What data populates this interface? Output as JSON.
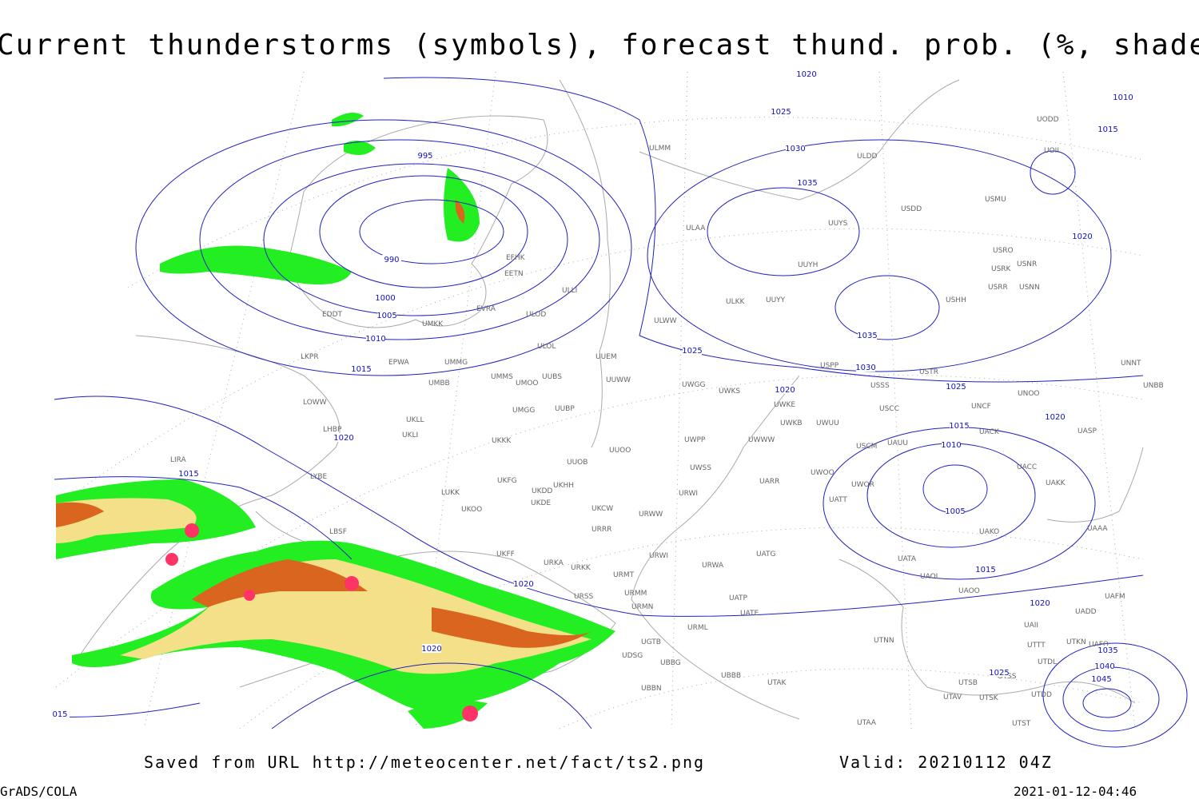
{
  "title": "Current thunderstorms (symbols), forecast thund. prob. (%, shaded)",
  "footer": {
    "saved": "Saved from URL http://meteocenter.net/fact/ts2.png",
    "valid": "Valid: 20210112 04Z",
    "software": "GrADS/COLA",
    "timestamp": "2021-01-12-04:46"
  },
  "stations": [
    "UODD",
    "UOII",
    "ULMM",
    "ULDD",
    "USMU",
    "USDD",
    "UUYS",
    "ULAA",
    "USRO",
    "USNR",
    "UUYH",
    "USRK",
    "EFHK",
    "EETN",
    "USRR",
    "USNN",
    "ULLI",
    "USHH",
    "UUYY",
    "ULKK",
    "EVRA",
    "ULOD",
    "EDDT",
    "ULWW",
    "UMKK",
    "ULOL",
    "LKPR",
    "UUEM",
    "EPWA",
    "UMMG",
    "USPP",
    "UNNT",
    "USTR",
    "UMMS",
    "UUBS",
    "UUWW",
    "UMBB",
    "UMOO",
    "UWGG",
    "USSS",
    "UNBB",
    "UWKS",
    "UNOO",
    "LOWW",
    "UWKE",
    "UNCF",
    "UUBP",
    "USCC",
    "UMGG",
    "UKLL",
    "UWKB",
    "UWUU",
    "LHBP",
    "UASP",
    "UACK",
    "UKLI",
    "UWPP",
    "UWWW",
    "UKKK",
    "UAUU",
    "USCM",
    "UUOO",
    "LIRA",
    "UUOB",
    "UACC",
    "UWSS",
    "UWOO",
    "LYBE",
    "UKFG",
    "UARR",
    "UAKK",
    "UKHH",
    "UWOR",
    "UKDD",
    "LUKK",
    "URWI",
    "UATT",
    "UKOO",
    "UKDE",
    "UKCW",
    "URWW",
    "UAAA",
    "URRR",
    "UAKO",
    "LBSF",
    "UKFF",
    "UATG",
    "URWI",
    "UATA",
    "URKA",
    "URWA",
    "URKK",
    "URMT",
    "UAOL",
    "UAOO",
    "URMM",
    "URSS",
    "UAFM",
    "UATP",
    "URMN",
    "UADD",
    "UATE",
    "UAII",
    "URML",
    "UTNN",
    "UGTB",
    "UTKN",
    "UAFO",
    "UTTT",
    "UDSG",
    "UTDL",
    "UBBG",
    "UBBB",
    "UTSS",
    "UTAK",
    "UTSB",
    "UBBN",
    "UTDD",
    "UTAV",
    "UTSK",
    "UTAA",
    "UTST"
  ],
  "isobar_labels": [
    1020,
    1010,
    1015,
    1025,
    1030,
    1035,
    995,
    990,
    1000,
    1005,
    1010,
    1015,
    1025,
    1030,
    1035,
    1020,
    1020,
    1025,
    1020,
    1015,
    1010,
    1005,
    1015,
    1020,
    1015,
    1020,
    1020,
    1020,
    1025,
    1035,
    1040,
    1045,
    "015"
  ]
}
